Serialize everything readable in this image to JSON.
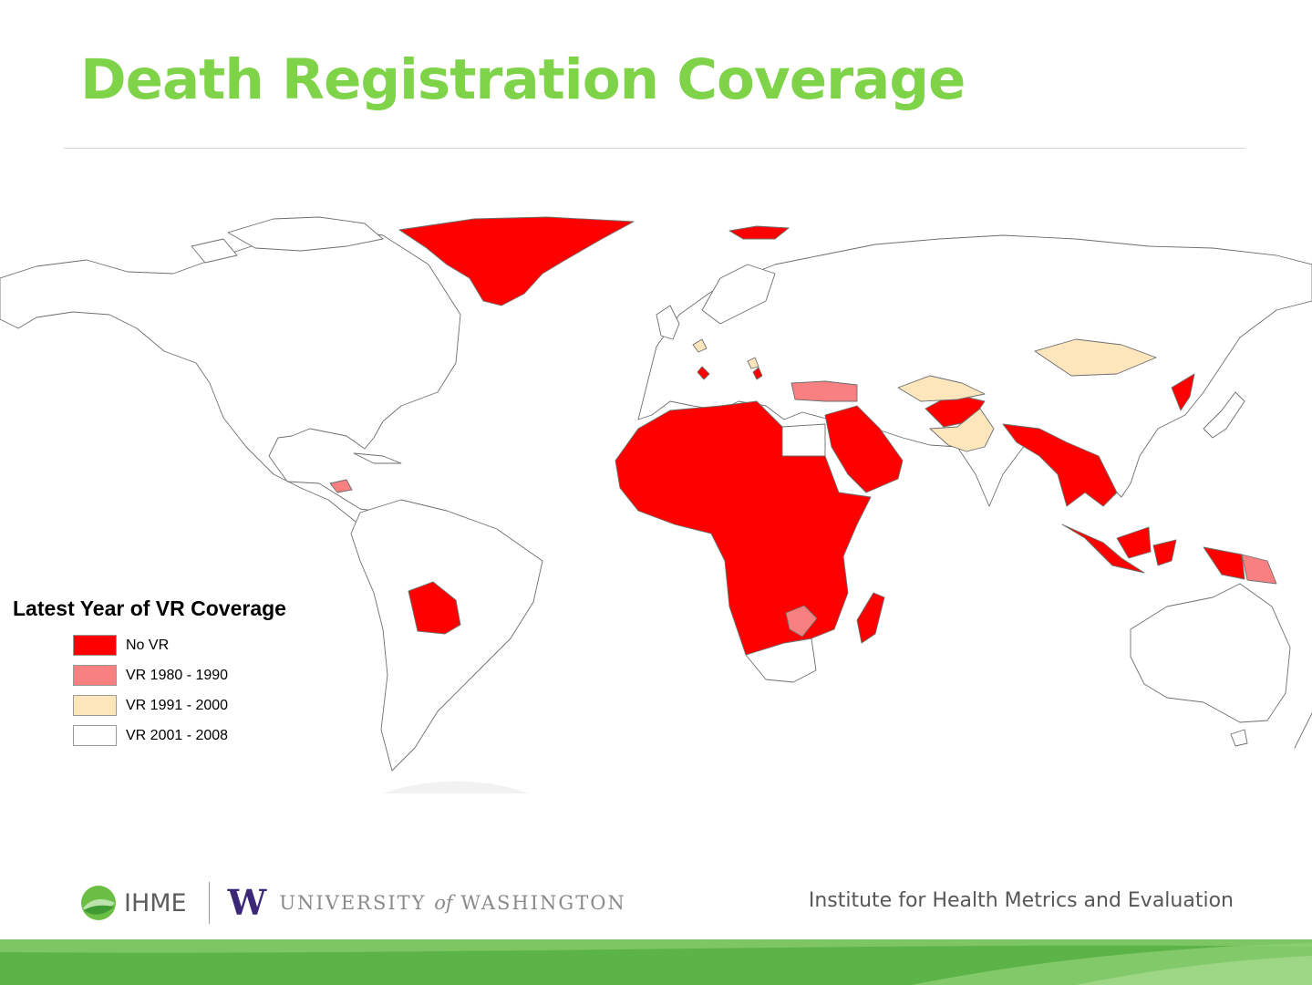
{
  "slide": {
    "title": "Death Registration Coverage"
  },
  "legend": {
    "title": "Latest Year of VR Coverage",
    "items": [
      {
        "label": "No VR",
        "color": "#ff0000"
      },
      {
        "label": "VR 1980 - 1990",
        "color": "#f98080"
      },
      {
        "label": "VR 1991 - 2000",
        "color": "#fde6bc"
      },
      {
        "label": "VR 2001 - 2008",
        "color": "#ffffff"
      }
    ]
  },
  "map": {
    "colors": {
      "no_vr": "#ff0000",
      "vr_1980_1990": "#f98080",
      "vr_1991_2000": "#fde6bc",
      "vr_2001_2008": "#ffffff",
      "border": "#6e6e6e"
    }
  },
  "footer": {
    "ihme": "IHME",
    "uw_letter": "W",
    "uw_prefix": "UNIVERSITY",
    "uw_of": "of",
    "uw_suffix": "WASHINGTON",
    "institute": "Institute for Health Metrics and Evaluation",
    "colors": {
      "ihme_green": "#6cbf45",
      "uw_purple": "#3b2776",
      "band_green": "#5cb348"
    }
  }
}
